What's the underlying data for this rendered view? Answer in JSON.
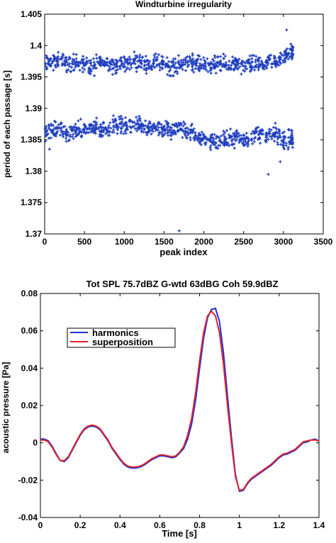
{
  "chart_data": [
    {
      "type": "scatter",
      "title": "Windturbine irregularity",
      "xlabel": "peak index",
      "ylabel": "period of each passage [s]",
      "xlim": [
        0,
        3500
      ],
      "ylim": [
        1.37,
        1.405
      ],
      "xticks": [
        0,
        500,
        1000,
        1500,
        2000,
        2500,
        3000,
        3500
      ],
      "yticks": [
        1.37,
        1.375,
        1.38,
        1.385,
        1.39,
        1.395,
        1.4,
        1.405
      ],
      "xtick_labels": [
        "0",
        "500",
        "1000",
        "1500",
        "2000",
        "2500",
        "3000",
        "3500"
      ],
      "ytick_labels": [
        "1.37",
        "1.375",
        "1.38",
        "1.385",
        "1.39",
        "1.395",
        "1.4",
        "1.405"
      ],
      "grid": false,
      "marker_color": "#1f3fbf",
      "bands": [
        {
          "x": [
            0,
            100,
            200,
            300,
            400,
            500,
            600,
            700,
            800,
            900,
            1000,
            1100,
            1200,
            1300,
            1400,
            1500,
            1600,
            1700,
            1800,
            1900,
            2000,
            2100,
            2200,
            2300,
            2400,
            2500,
            2600,
            2700,
            2800,
            2900,
            3000,
            3100
          ],
          "center": [
            1.397,
            1.3975,
            1.3975,
            1.397,
            1.3975,
            1.397,
            1.3965,
            1.3975,
            1.397,
            1.397,
            1.397,
            1.3975,
            1.3975,
            1.397,
            1.3975,
            1.397,
            1.3965,
            1.397,
            1.3975,
            1.397,
            1.397,
            1.397,
            1.397,
            1.397,
            1.397,
            1.3965,
            1.397,
            1.397,
            1.397,
            1.3975,
            1.398,
            1.399
          ],
          "spread": 0.0016,
          "points_per_step": 24
        },
        {
          "x": [
            0,
            100,
            200,
            300,
            400,
            500,
            600,
            700,
            800,
            900,
            1000,
            1100,
            1200,
            1300,
            1400,
            1500,
            1600,
            1700,
            1800,
            1900,
            2000,
            2100,
            2200,
            2300,
            2400,
            2500,
            2600,
            2700,
            2800,
            2900,
            3000,
            3100
          ],
          "center": [
            1.386,
            1.3865,
            1.3865,
            1.386,
            1.3865,
            1.3865,
            1.387,
            1.3865,
            1.387,
            1.3875,
            1.387,
            1.3875,
            1.3875,
            1.387,
            1.387,
            1.3865,
            1.3865,
            1.387,
            1.386,
            1.386,
            1.385,
            1.385,
            1.3845,
            1.385,
            1.3855,
            1.385,
            1.3855,
            1.386,
            1.3855,
            1.386,
            1.385,
            1.385
          ],
          "spread": 0.0017,
          "points_per_step": 24
        }
      ],
      "outliers": [
        {
          "x": 1690,
          "y": 1.3705
        },
        {
          "x": 2810,
          "y": 1.3795
        },
        {
          "x": 3040,
          "y": 1.4025
        },
        {
          "x": 2960,
          "y": 1.3815
        },
        {
          "x": 60,
          "y": 1.3835
        }
      ]
    },
    {
      "type": "line",
      "title": "Tot SPL 75.7dBZ  G-wtd 63dBG  Coh 59.9dBZ",
      "xlabel": "Time [s]",
      "ylabel": "acoustic pressure [Pa]",
      "xlim": [
        0,
        1.4
      ],
      "ylim": [
        -0.04,
        0.08
      ],
      "xticks": [
        0,
        0.2,
        0.4,
        0.6,
        0.8,
        1,
        1.2,
        1.4
      ],
      "yticks": [
        -0.04,
        -0.02,
        0,
        0.02,
        0.04,
        0.06,
        0.08
      ],
      "xtick_labels": [
        "0",
        "0.2",
        "0.4",
        "0.6",
        "0.8",
        "1",
        "1.2",
        "1.4"
      ],
      "ytick_labels": [
        "-0.04",
        "-0.02",
        "0",
        "0.02",
        "0.04",
        "0.06",
        "0.08"
      ],
      "grid": false,
      "legend": "top-left",
      "series": [
        {
          "name": "harmonics",
          "color": "#1f2fd9",
          "x": [
            0,
            0.02,
            0.04,
            0.06,
            0.08,
            0.1,
            0.12,
            0.14,
            0.16,
            0.18,
            0.2,
            0.22,
            0.24,
            0.26,
            0.28,
            0.3,
            0.32,
            0.34,
            0.36,
            0.38,
            0.4,
            0.42,
            0.44,
            0.46,
            0.48,
            0.5,
            0.52,
            0.54,
            0.56,
            0.58,
            0.6,
            0.62,
            0.64,
            0.66,
            0.68,
            0.7,
            0.72,
            0.74,
            0.76,
            0.78,
            0.8,
            0.82,
            0.84,
            0.86,
            0.88,
            0.9,
            0.92,
            0.94,
            0.96,
            0.98,
            1.0,
            1.02,
            1.04,
            1.06,
            1.08,
            1.1,
            1.12,
            1.14,
            1.16,
            1.18,
            1.2,
            1.22,
            1.24,
            1.26,
            1.28,
            1.3,
            1.32,
            1.34,
            1.36,
            1.38,
            1.4
          ],
          "values": [
            0.002,
            0.002,
            0.001,
            -0.002,
            -0.006,
            -0.0095,
            -0.01,
            -0.008,
            -0.004,
            0.0,
            0.004,
            0.007,
            0.0085,
            0.009,
            0.0085,
            0.007,
            0.004,
            0.001,
            -0.003,
            -0.006,
            -0.009,
            -0.0115,
            -0.013,
            -0.0135,
            -0.0135,
            -0.013,
            -0.012,
            -0.0105,
            -0.009,
            -0.008,
            -0.007,
            -0.007,
            -0.0075,
            -0.008,
            -0.0075,
            -0.0055,
            -0.003,
            0.002,
            0.01,
            0.023,
            0.04,
            0.056,
            0.067,
            0.0715,
            0.072,
            0.065,
            0.048,
            0.025,
            0.003,
            -0.017,
            -0.026,
            -0.0255,
            -0.022,
            -0.0195,
            -0.018,
            -0.0165,
            -0.015,
            -0.0135,
            -0.012,
            -0.01,
            -0.008,
            -0.0065,
            -0.006,
            -0.005,
            -0.004,
            -0.002,
            0.0,
            0.0005,
            0.0015,
            0.002,
            0.001
          ]
        },
        {
          "name": "superposition",
          "color": "#e0242b",
          "x": [
            0,
            0.02,
            0.04,
            0.06,
            0.08,
            0.1,
            0.12,
            0.14,
            0.16,
            0.18,
            0.2,
            0.22,
            0.24,
            0.26,
            0.28,
            0.3,
            0.32,
            0.34,
            0.36,
            0.38,
            0.4,
            0.42,
            0.44,
            0.46,
            0.48,
            0.5,
            0.52,
            0.54,
            0.56,
            0.58,
            0.6,
            0.62,
            0.64,
            0.66,
            0.68,
            0.7,
            0.72,
            0.74,
            0.76,
            0.78,
            0.8,
            0.82,
            0.84,
            0.86,
            0.88,
            0.9,
            0.92,
            0.94,
            0.96,
            0.98,
            1.0,
            1.02,
            1.04,
            1.06,
            1.08,
            1.1,
            1.12,
            1.14,
            1.16,
            1.18,
            1.2,
            1.22,
            1.24,
            1.26,
            1.28,
            1.3,
            1.32,
            1.34,
            1.36,
            1.38,
            1.4
          ],
          "values": [
            0.0015,
            0.0015,
            0.0005,
            -0.0025,
            -0.0065,
            -0.0095,
            -0.0095,
            -0.0075,
            -0.0035,
            0.0005,
            0.0045,
            0.0075,
            0.009,
            0.0095,
            0.009,
            0.0075,
            0.0045,
            0.0015,
            -0.0025,
            -0.0055,
            -0.0085,
            -0.011,
            -0.0125,
            -0.013,
            -0.013,
            -0.0125,
            -0.0115,
            -0.01,
            -0.0085,
            -0.0075,
            -0.0065,
            -0.0065,
            -0.007,
            -0.0075,
            -0.007,
            -0.005,
            -0.002,
            0.004,
            0.013,
            0.027,
            0.044,
            0.059,
            0.068,
            0.0705,
            0.068,
            0.059,
            0.042,
            0.02,
            0.0,
            -0.018,
            -0.0255,
            -0.025,
            -0.0215,
            -0.019,
            -0.0175,
            -0.016,
            -0.0145,
            -0.013,
            -0.0115,
            -0.0095,
            -0.0075,
            -0.006,
            -0.0055,
            -0.0045,
            -0.0035,
            -0.0015,
            0.0005,
            0.001,
            0.0015,
            0.0015,
            0.001
          ]
        }
      ]
    }
  ]
}
